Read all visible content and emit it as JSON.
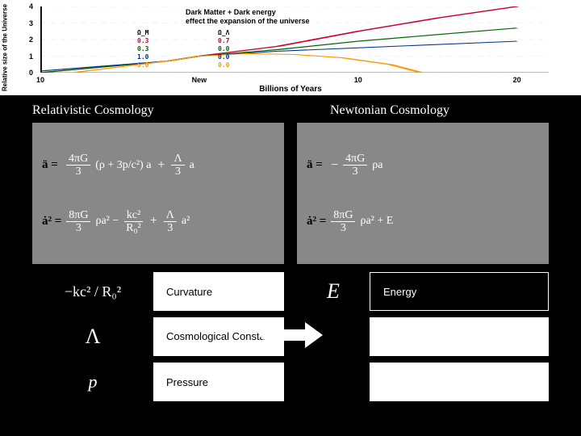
{
  "chart": {
    "type": "line",
    "title_line1": "Dark Matter + Dark energy",
    "title_line2": "effect the expansion of the universe",
    "xlabel": "Billions of Years",
    "ylabel": "Relative size of the Universe",
    "xlim": [
      -10,
      22
    ],
    "ylim": [
      0,
      4
    ],
    "xticks": [
      -10,
      0,
      10,
      20
    ],
    "xticklabels": [
      "10",
      "New",
      "10",
      "20"
    ],
    "yticks": [
      0,
      1,
      2,
      3,
      4
    ],
    "legend_left": {
      "header": "Ω_M",
      "values": [
        "0.3",
        "0.3",
        "1.0",
        "5.0"
      ]
    },
    "legend_right": {
      "header": "Ω_Λ",
      "values": [
        "0.7",
        "0.0",
        "0.0",
        "0.0"
      ]
    },
    "series": [
      {
        "color": "#cc0033",
        "points": [
          [
            -10,
            0
          ],
          [
            -2,
            0.7
          ],
          [
            0,
            1
          ],
          [
            5,
            1.6
          ],
          [
            10,
            2.5
          ],
          [
            15,
            3.3
          ],
          [
            20,
            4
          ]
        ]
      },
      {
        "color": "#006600",
        "points": [
          [
            -10,
            0
          ],
          [
            -2,
            0.7
          ],
          [
            0,
            1
          ],
          [
            5,
            1.4
          ],
          [
            10,
            1.9
          ],
          [
            15,
            2.3
          ],
          [
            20,
            2.7
          ]
        ]
      },
      {
        "color": "#003399",
        "points": [
          [
            -10,
            0.1
          ],
          [
            -2,
            0.7
          ],
          [
            0,
            1
          ],
          [
            5,
            1.3
          ],
          [
            10,
            1.5
          ],
          [
            15,
            1.7
          ],
          [
            20,
            1.9
          ]
        ]
      },
      {
        "color": "#ff9900",
        "points": [
          [
            -8,
            0
          ],
          [
            -2,
            0.7
          ],
          [
            0,
            1
          ],
          [
            3,
            1.15
          ],
          [
            6,
            1.1
          ],
          [
            9,
            0.9
          ],
          [
            12,
            0.5
          ],
          [
            14,
            0
          ]
        ]
      }
    ],
    "background_color": "#ffffff",
    "axis_color": "#000000"
  },
  "columns": {
    "left_title": "Relativistic  Cosmology",
    "right_title": "Newtonian  Cosmology"
  },
  "equations": {
    "rel": {
      "eq1": {
        "lhs": "ä =",
        "term1_num": "4πG",
        "term1_den": "3",
        "paren": "(ρ + 3p/c²) a",
        "plus": "+",
        "term2_num": "Λ",
        "term2_den": "3",
        "tail": "a"
      },
      "eq2": {
        "lhs": "ȧ² =",
        "term1_num": "8πG",
        "term1_den": "3",
        "mid": "ρa² −",
        "term2_num": "kc²",
        "term2_den": "R₀²",
        "plus": "+",
        "term3_num": "Λ",
        "term3_den": "3",
        "tail": "a²"
      }
    },
    "newt": {
      "eq1": {
        "lhs": "ä =",
        "minus": "−",
        "term1_num": "4πG",
        "term1_den": "3",
        "tail": "ρa"
      },
      "eq2": {
        "lhs": "ȧ² =",
        "term1_num": "8πG",
        "term1_den": "3",
        "mid": "ρa² + E",
        "tail": ""
      }
    }
  },
  "terms": {
    "left": [
      {
        "symbol": "−kc² / R₀²",
        "label": "Curvature"
      },
      {
        "symbol": "Λ",
        "label": "Cosmological Constant"
      },
      {
        "symbol": "p",
        "label": "Pressure"
      }
    ],
    "right": [
      {
        "symbol": "E",
        "label": "Energy"
      }
    ]
  },
  "colors": {
    "panel_bg": "#888888",
    "page_bg": "#000000",
    "white": "#ffffff"
  }
}
